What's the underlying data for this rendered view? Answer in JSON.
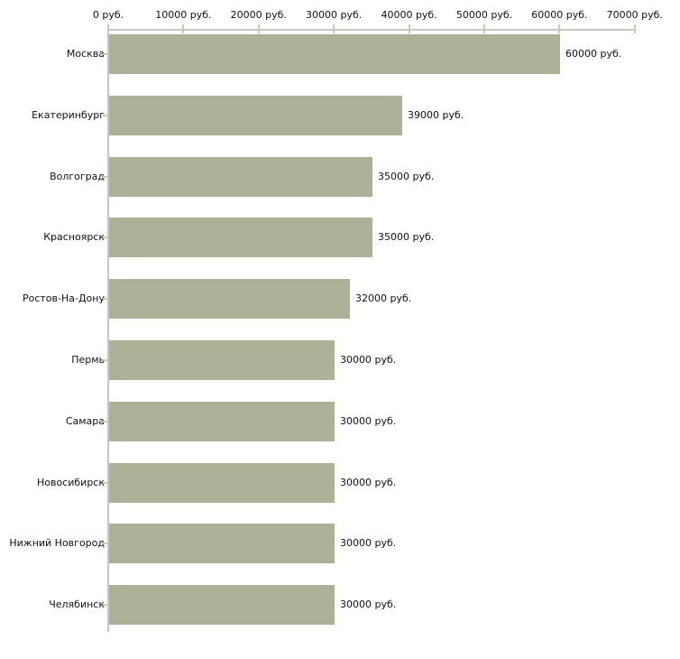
{
  "chart_data": {
    "type": "bar",
    "orientation": "horizontal",
    "title": "",
    "xlabel": "",
    "ylabel": "",
    "unit": "руб.",
    "categories": [
      "Москва",
      "Екатеринбург",
      "Волгоград",
      "Красноярск",
      "Ростов-На-Дону",
      "Пермь",
      "Самара",
      "Новосибирск",
      "Нижний Новгород",
      "Челябинск"
    ],
    "values": [
      60000,
      39000,
      35000,
      35000,
      32000,
      30000,
      30000,
      30000,
      30000,
      30000
    ],
    "value_labels": [
      "60000 руб.",
      "39000 руб.",
      "35000 руб.",
      "35000 руб.",
      "32000 руб.",
      "30000 руб.",
      "30000 руб.",
      "30000 руб.",
      "30000 руб.",
      "30000 руб."
    ],
    "x_ticks": [
      0,
      10000,
      20000,
      30000,
      40000,
      50000,
      60000,
      70000
    ],
    "x_tick_labels": [
      "0 руб.",
      "10000 руб.",
      "20000 руб.",
      "30000 руб.",
      "40000 руб.",
      "50000 руб.",
      "60000 руб.",
      "70000 руб."
    ],
    "xlim": [
      0,
      70000
    ],
    "axis_position": "top",
    "grid": false,
    "legend": false,
    "colors": {
      "bar": "#abb298",
      "tick": "#c9ccae",
      "axis_line": "#c6c6c2",
      "text": "#111111",
      "background": "#ffffff"
    }
  }
}
